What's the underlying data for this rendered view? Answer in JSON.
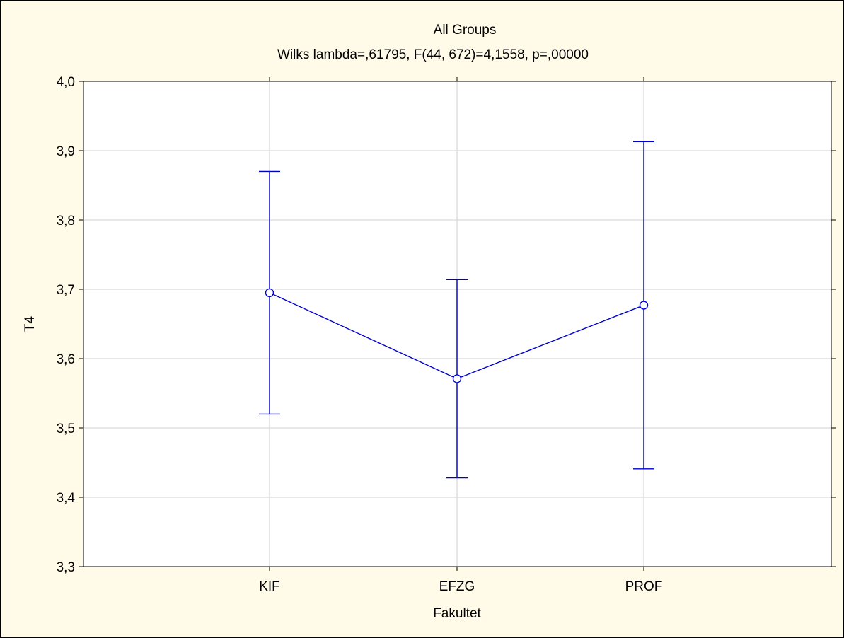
{
  "chart_data": {
    "type": "line",
    "title": "All Groups",
    "subtitle": "Wilks lambda=,61795, F(44, 672)=4,1558, p=,00000",
    "xlabel": "Fakultet",
    "ylabel": "T4",
    "categories": [
      "KIF",
      "EFZG",
      "PROF"
    ],
    "series": [
      {
        "values": [
          3.695,
          3.571,
          3.677
        ],
        "lower": [
          3.52,
          3.428,
          3.441
        ],
        "upper": [
          3.87,
          3.714,
          3.913
        ]
      }
    ],
    "ylim": [
      3.3,
      4.0
    ],
    "y_ticks": [
      "3,3",
      "3,4",
      "3,5",
      "3,6",
      "3,7",
      "3,8",
      "3,9",
      "4,0"
    ],
    "grid": true,
    "colors": {
      "series": "#0000cc",
      "background": "#fffbe8",
      "plot_area": "#ffffff",
      "grid": "#d9d9d9"
    }
  }
}
